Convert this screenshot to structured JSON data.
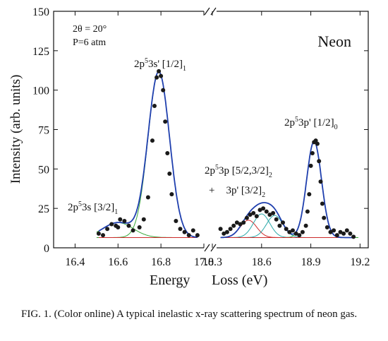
{
  "chart_data": {
    "type": "line",
    "title": "Neon",
    "conditions": [
      "2θ = 20°",
      "P=6 atm"
    ],
    "xlabel": [
      "Energy",
      "Loss (eV)"
    ],
    "ylabel": "Intensity (arb. units)",
    "ylim": [
      0,
      150
    ],
    "y_ticks": [
      0,
      25,
      50,
      75,
      100,
      125,
      150
    ],
    "axis_break": "//",
    "panels": [
      {
        "xlim": [
          16.3,
          17.0
        ],
        "x_ticks": [
          16.4,
          16.6,
          16.8,
          17.0
        ]
      },
      {
        "xlim": [
          18.3,
          19.25
        ],
        "x_ticks": [
          18.3,
          18.6,
          18.9,
          19.2
        ]
      }
    ],
    "peaks": [
      {
        "label": "2p⁵3s [3/2]₁",
        "center": 16.6,
        "height": 9.5,
        "width": 0.07,
        "panel": 0
      },
      {
        "label": "2p⁵3s' [1/2]₁",
        "center": 16.79,
        "height": 105,
        "width": 0.05,
        "panel": 0
      },
      {
        "label": "2p⁵3p [5/2,3/2]₂",
        "center": 18.52,
        "height": 11,
        "width": 0.05,
        "panel": 1
      },
      {
        "label": "3p' [3/2]₂",
        "center": 18.6,
        "height": 15,
        "width": 0.05,
        "panel": 1
      },
      {
        "label": "",
        "center": 18.68,
        "height": 14,
        "width": 0.05,
        "panel": 1
      },
      {
        "label": "2p⁵3p' [1/2]₀",
        "center": 18.92,
        "height": 61,
        "width": 0.045,
        "panel": 1
      }
    ],
    "baseline": 6.5,
    "series": [
      {
        "points": [
          [
            16.51,
            9
          ],
          [
            16.53,
            8
          ],
          [
            16.55,
            12
          ],
          [
            16.57,
            15
          ],
          [
            16.59,
            14
          ],
          [
            16.6,
            13
          ],
          [
            16.61,
            18
          ],
          [
            16.63,
            17
          ],
          [
            16.65,
            14
          ],
          [
            16.67,
            11
          ],
          [
            16.7,
            13
          ],
          [
            16.72,
            18
          ],
          [
            16.74,
            32
          ],
          [
            16.76,
            68
          ],
          [
            16.77,
            90
          ],
          [
            16.78,
            108
          ],
          [
            16.79,
            112
          ],
          [
            16.8,
            109
          ],
          [
            16.81,
            100
          ],
          [
            16.82,
            80
          ],
          [
            16.83,
            60
          ],
          [
            16.84,
            47
          ],
          [
            16.85,
            34
          ],
          [
            16.87,
            17
          ],
          [
            16.89,
            12
          ],
          [
            16.91,
            10
          ],
          [
            16.93,
            8
          ],
          [
            16.95,
            11
          ],
          [
            16.97,
            8
          ]
        ]
      },
      {
        "points": [
          [
            18.35,
            12
          ],
          [
            18.37,
            9
          ],
          [
            18.39,
            10
          ],
          [
            18.41,
            12
          ],
          [
            18.43,
            14
          ],
          [
            18.45,
            16
          ],
          [
            18.47,
            15
          ],
          [
            18.49,
            16
          ],
          [
            18.51,
            19
          ],
          [
            18.53,
            21
          ],
          [
            18.55,
            22
          ],
          [
            18.57,
            20
          ],
          [
            18.59,
            24
          ],
          [
            18.61,
            25
          ],
          [
            18.63,
            23
          ],
          [
            18.65,
            21
          ],
          [
            18.67,
            22
          ],
          [
            18.69,
            18
          ],
          [
            18.71,
            14
          ],
          [
            18.73,
            16
          ],
          [
            18.75,
            12
          ],
          [
            18.77,
            10
          ],
          [
            18.79,
            11
          ],
          [
            18.81,
            9
          ],
          [
            18.83,
            8
          ],
          [
            18.85,
            10
          ],
          [
            18.87,
            14
          ],
          [
            18.88,
            23
          ],
          [
            18.89,
            34
          ],
          [
            18.9,
            52
          ],
          [
            18.91,
            60
          ],
          [
            18.92,
            67
          ],
          [
            18.93,
            68
          ],
          [
            18.94,
            66
          ],
          [
            18.95,
            55
          ],
          [
            18.96,
            42
          ],
          [
            18.97,
            28
          ],
          [
            18.98,
            19
          ],
          [
            19.0,
            13
          ],
          [
            19.02,
            10
          ],
          [
            19.04,
            11
          ],
          [
            19.06,
            8
          ],
          [
            19.08,
            10
          ],
          [
            19.1,
            9
          ],
          [
            19.12,
            11
          ],
          [
            19.14,
            9
          ],
          [
            19.16,
            7
          ]
        ]
      }
    ]
  },
  "annotations": {
    "peak1": {
      "main": "2p",
      "sup": "5",
      "mid": "3s [3/2]",
      "sub": "1"
    },
    "peak2": {
      "main": "2p",
      "sup": "5",
      "mid": "3s' [1/2]",
      "sub": "1"
    },
    "peak3a": {
      "main": "2p",
      "sup": "5",
      "mid": "3p [5/2,3/2]",
      "sub": "2"
    },
    "peak3b": {
      "plus": "+",
      "mid": "3p' [3/2]",
      "sub": "2"
    },
    "peak4": {
      "main": "2p",
      "sup": "5",
      "mid": "3p' [1/2]",
      "sub": "0"
    }
  },
  "colors": {
    "data": "#1a1a1a",
    "fit": "#1f3fae",
    "green": "#3aa83a",
    "red": "#cc2a2a",
    "cyan": "#2aa8a8"
  },
  "caption": "FIG. 1. (Color online) A typical inelastic x-ray scattering spectrum of neon gas."
}
